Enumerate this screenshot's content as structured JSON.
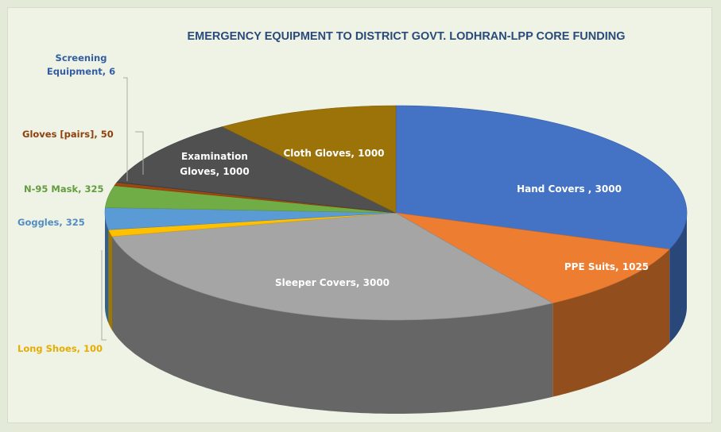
{
  "chart_data": {
    "type": "pie",
    "title": "EMERGENCY EQUIPMENT TO DISTRICT GOVT. LODHRAN-LPP CORE FUNDING",
    "slices": [
      {
        "category": "Hand Covers",
        "value": 3000,
        "color": "#4472c4",
        "label_lines": [
          "Hand Covers    , 3000"
        ]
      },
      {
        "category": "PPE Suits",
        "value": 1025,
        "color": "#ed7d31",
        "label_lines": [
          "PPE Suits, 1025"
        ]
      },
      {
        "category": "Sleeper Covers",
        "value": 3000,
        "color": "#a5a5a5",
        "label_lines": [
          "Sleeper Covers, 3000"
        ]
      },
      {
        "category": "Long Shoes",
        "value": 100,
        "color": "#ffc000",
        "label_lines": [
          "Long Shoes, 100"
        ]
      },
      {
        "category": "Goggles",
        "value": 325,
        "color": "#5b9bd5",
        "label_lines": [
          "Goggles, 325"
        ]
      },
      {
        "category": "N-95 Mask",
        "value": 325,
        "color": "#70ad47",
        "label_lines": [
          "N-95 Mask, 325"
        ]
      },
      {
        "category": "Gloves [pairs]",
        "value": 50,
        "color": "#9e480e",
        "label_lines": [
          "Gloves [pairs], 50"
        ]
      },
      {
        "category": "Screening Equipment",
        "value": 6,
        "color": "#264478",
        "label_lines": [
          "Screening",
          "Equipment, 6"
        ]
      },
      {
        "category": "Examination Gloves",
        "value": 1000,
        "color": "#505050",
        "label_lines": [
          "Examination",
          "Gloves, 1000"
        ]
      },
      {
        "category": "Cloth Gloves",
        "value": 1000,
        "color": "#9c7308",
        "label_lines": [
          "Cloth Gloves, 1000"
        ]
      }
    ],
    "style": "3d-exploded-none",
    "legend": "none"
  }
}
